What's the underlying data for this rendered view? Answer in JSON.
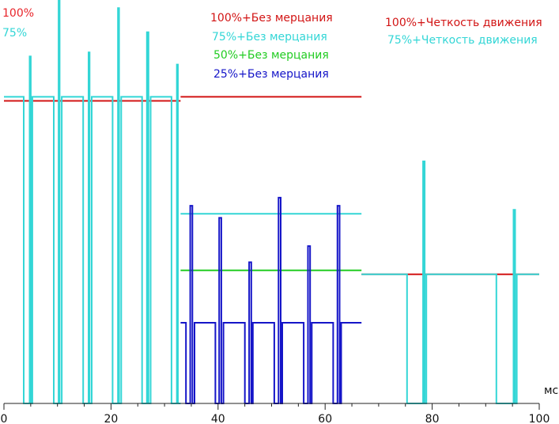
{
  "chart_data": {
    "type": "line",
    "x_unit_label": "мс",
    "xlim": [
      0,
      100
    ],
    "x_ticks": [
      "0",
      "20",
      "40",
      "60",
      "80",
      "100"
    ],
    "grid": false,
    "legend": [
      {
        "text": "100%",
        "color": "#e8242a"
      },
      {
        "text": "75%",
        "color": "#33d6d6"
      },
      {
        "text": "100%+Без мерцания",
        "color": "#d21414"
      },
      {
        "text": "75%+Без мерцания",
        "color": "#33d6d6"
      },
      {
        "text": "50%+Без мерцания",
        "color": "#22cc22"
      },
      {
        "text": "25%+Без мерцания",
        "color": "#1515c8"
      },
      {
        "text": "100%+Четкость движения",
        "color": "#d21414"
      },
      {
        "text": "75%+Четкость движения",
        "color": "#33d6d6"
      }
    ],
    "series": [
      {
        "name": "100%",
        "color": "#d21414",
        "x": [
          0,
          33
        ],
        "y": [
          75,
          75
        ]
      },
      {
        "name": "75%",
        "color": "#33d6d6",
        "x": [
          0,
          3.7,
          3.7,
          4.8,
          4.8,
          5.0,
          5.0,
          5.3,
          5.3,
          9.3,
          9.3,
          10.2,
          10.2,
          10.4,
          10.4,
          10.8,
          10.8,
          14.8,
          14.8,
          15.8,
          15.8,
          16.0,
          16.0,
          16.4,
          16.4,
          20.3,
          20.3,
          21.3,
          21.3,
          21.5,
          21.5,
          21.9,
          21.9,
          25.8,
          25.8,
          26.7,
          26.7,
          27.0,
          27.0,
          27.4,
          27.4,
          31.3,
          31.3,
          32.3,
          32.3,
          32.5,
          32.5,
          33.0
        ],
        "y": [
          76,
          76,
          0,
          0,
          86,
          86,
          0,
          0,
          76,
          76,
          0,
          0,
          100,
          100,
          0,
          0,
          76,
          76,
          0,
          0,
          87,
          87,
          0,
          0,
          76,
          76,
          0,
          0,
          98,
          98,
          0,
          0,
          76,
          76,
          0,
          0,
          92,
          92,
          0,
          0,
          76,
          76,
          0,
          0,
          84,
          84,
          0,
          0
        ]
      },
      {
        "name": "100%+Без мерцания",
        "color": "#d21414",
        "x": [
          33.0,
          66.8
        ],
        "y": [
          76,
          76
        ]
      },
      {
        "name": "75%+Без мерцания",
        "color": "#33d6d6",
        "x": [
          33.0,
          66.8
        ],
        "y": [
          47,
          47
        ]
      },
      {
        "name": "50%+Без мерцания",
        "color": "#22cc22",
        "x": [
          33.0,
          66.8
        ],
        "y": [
          33,
          33
        ]
      },
      {
        "name": "25%+Без мерцания",
        "color": "#1515c8",
        "x": [
          33.0,
          34.0,
          34.0,
          34.8,
          34.8,
          35.2,
          35.2,
          35.6,
          35.6,
          39.5,
          39.5,
          40.2,
          40.2,
          40.6,
          40.6,
          41.0,
          41.0,
          45.0,
          45.0,
          45.8,
          45.8,
          46.2,
          46.2,
          46.5,
          46.5,
          50.5,
          50.5,
          51.3,
          51.3,
          51.7,
          51.7,
          52.0,
          52.0,
          56.0,
          56.0,
          56.8,
          56.8,
          57.2,
          57.2,
          57.5,
          57.5,
          61.5,
          61.5,
          62.3,
          62.3,
          62.7,
          62.7,
          63.0,
          63.0,
          66.8
        ],
        "y": [
          20,
          20,
          0,
          0,
          49,
          49,
          0,
          0,
          20,
          20,
          0,
          0,
          46,
          46,
          0,
          0,
          20,
          20,
          0,
          0,
          35,
          35,
          0,
          0,
          20,
          20,
          0,
          0,
          51,
          51,
          0,
          0,
          20,
          20,
          0,
          0,
          39,
          39,
          0,
          0,
          20,
          20,
          0,
          0,
          49,
          49,
          0,
          0,
          20,
          20
        ]
      },
      {
        "name": "100%+Четкость движения",
        "color": "#d21414",
        "x": [
          66.8,
          100.0
        ],
        "y": [
          32,
          32
        ]
      },
      {
        "name": "75%+Четкость движения",
        "color": "#33d6d6",
        "x": [
          66.8,
          75.3,
          75.3,
          78.3,
          78.3,
          78.6,
          78.6,
          78.9,
          78.9,
          92.0,
          92.0,
          95.2,
          95.2,
          95.5,
          95.5,
          95.8,
          95.8,
          100.0
        ],
        "y": [
          32,
          32,
          0,
          0,
          60,
          60,
          0,
          0,
          32,
          32,
          0,
          0,
          48,
          48,
          0,
          0,
          32,
          32
        ]
      }
    ]
  }
}
